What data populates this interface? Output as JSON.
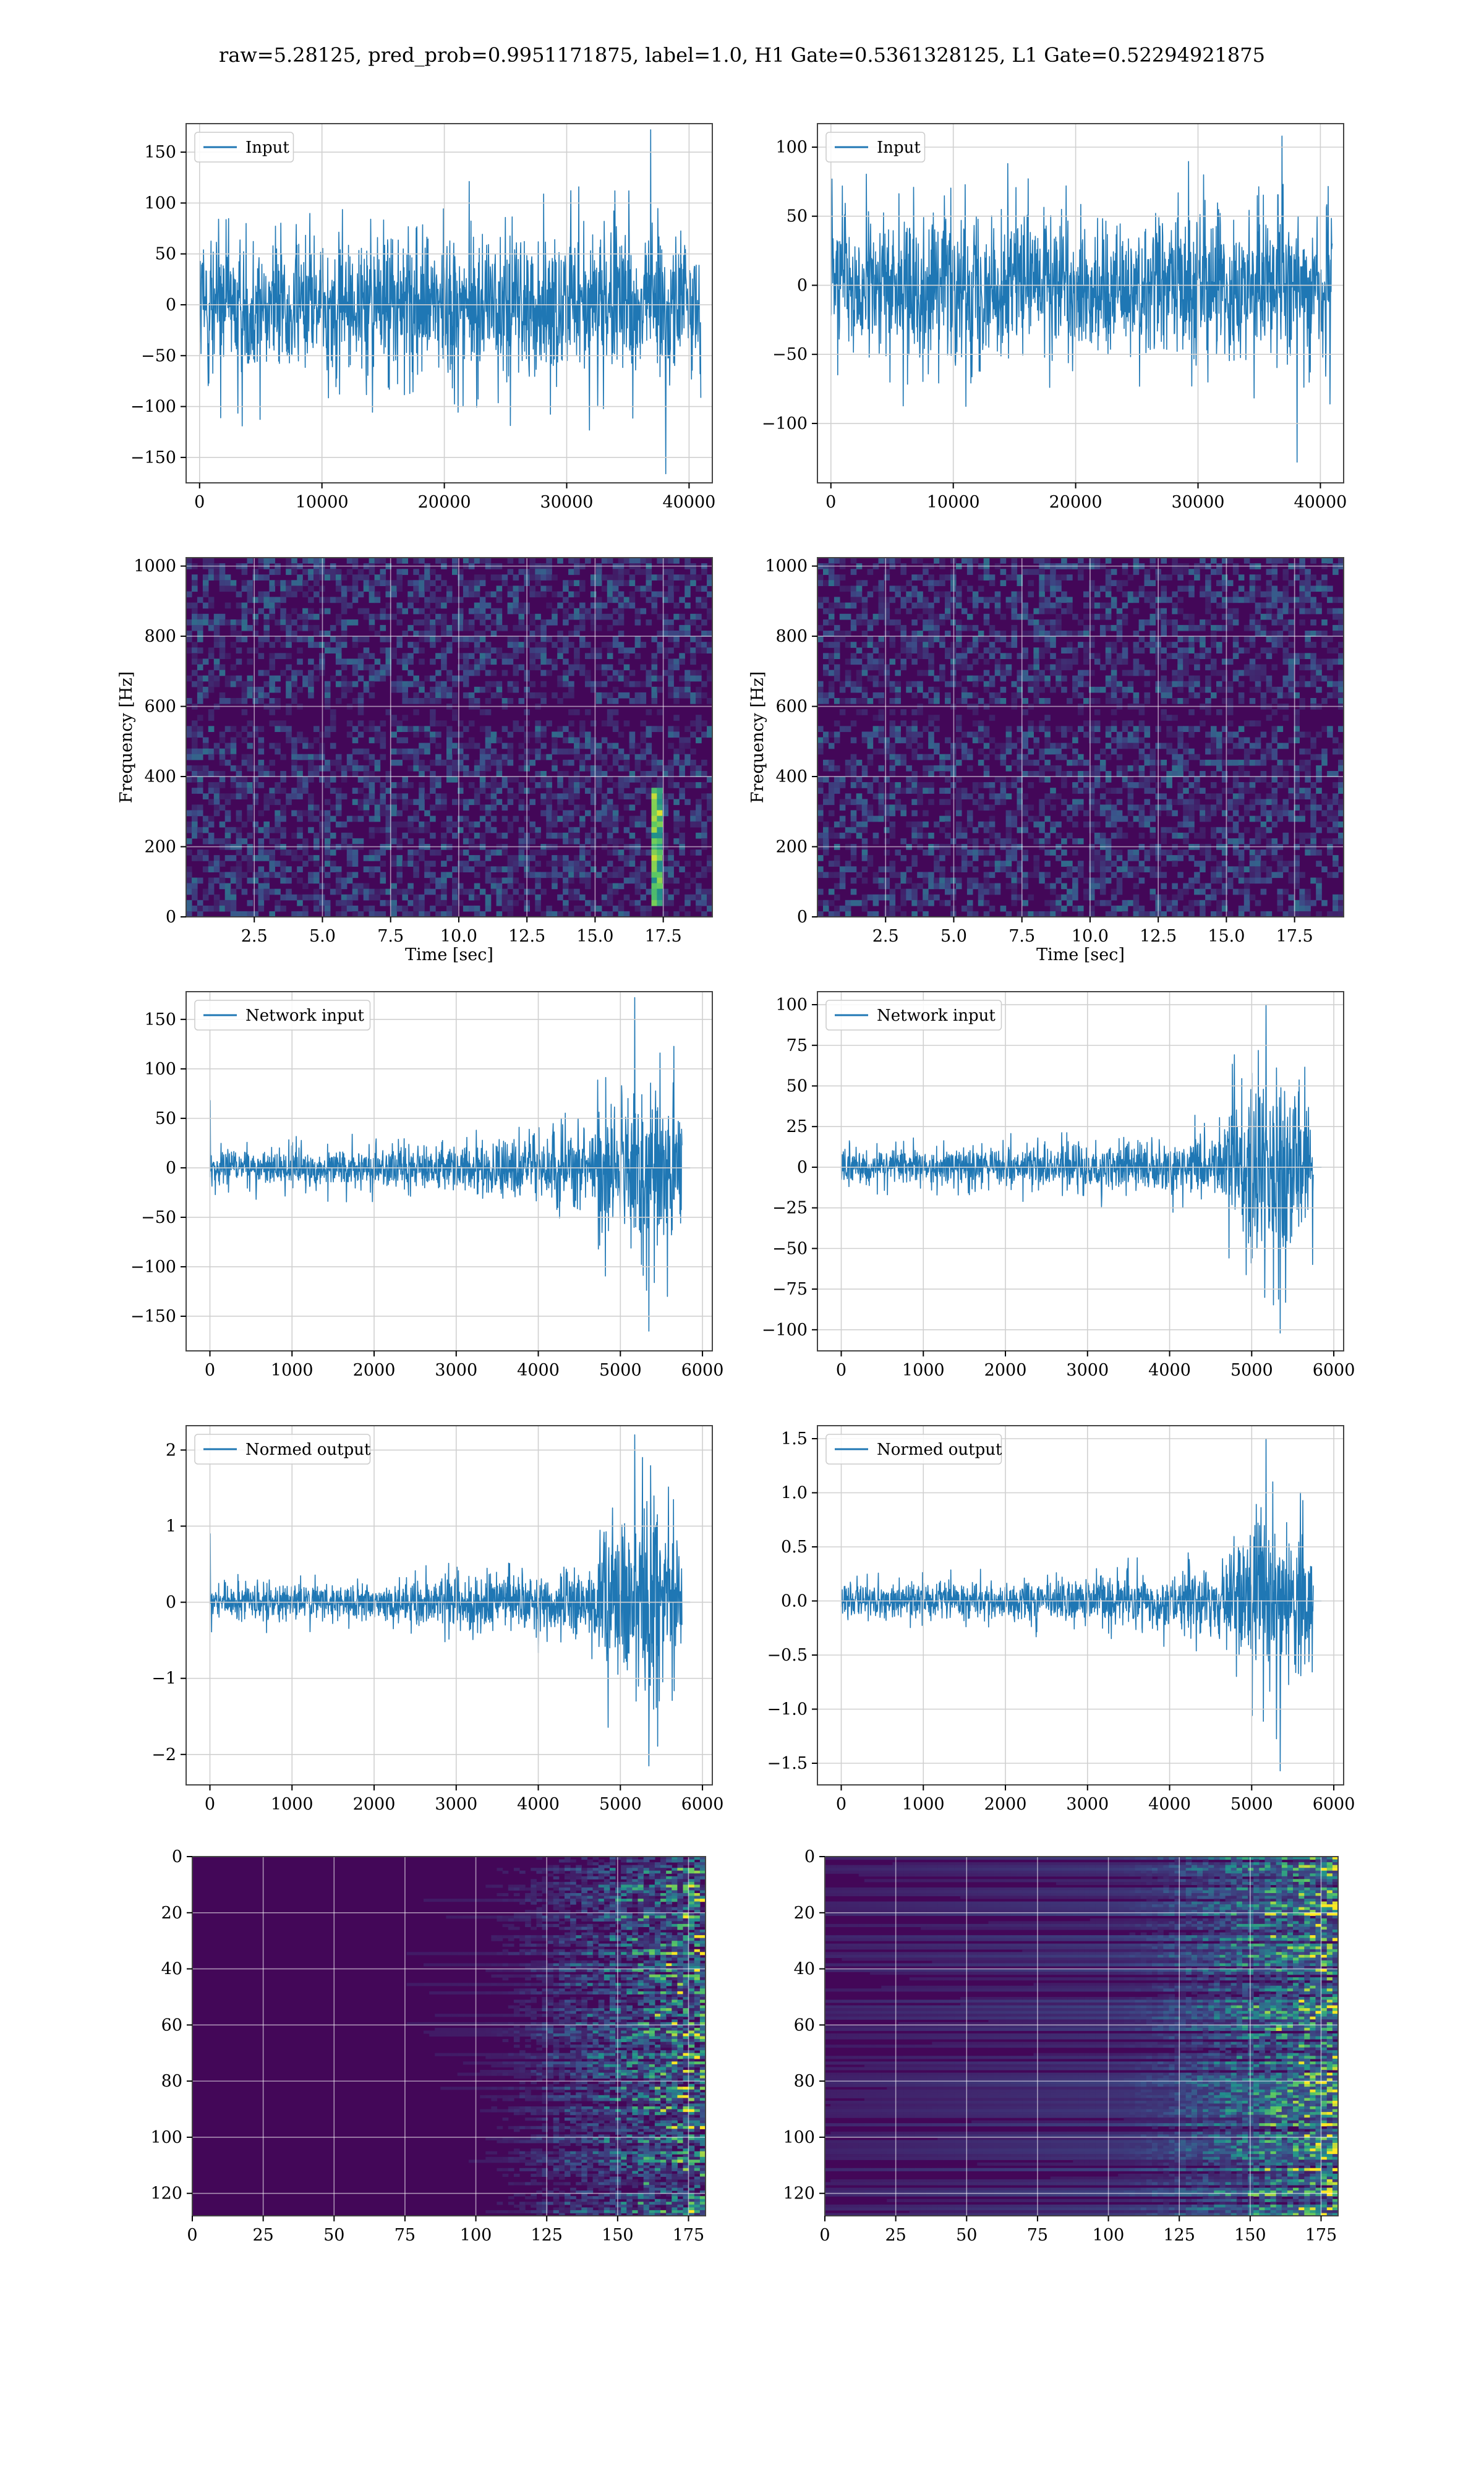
{
  "figure": {
    "title": "raw=5.28125, pred_prob=0.9951171875, label=1.0, H1 Gate=0.5361328125, L1 Gate=0.52294921875",
    "line_color": "#1f77b4"
  },
  "chart_data": [
    {
      "id": "h1-input",
      "type": "line",
      "legend": "Input",
      "xlim": [
        -1100,
        41900
      ],
      "ylim": [
        -175,
        178
      ],
      "xticks": [
        "0",
        "10000",
        "20000",
        "30000",
        "40000"
      ],
      "xtick_values": [
        0,
        10000,
        20000,
        30000,
        40000
      ],
      "yticks": [
        "150",
        "100",
        "50",
        "0",
        "−50",
        "−100",
        "−150"
      ],
      "ytick_values": [
        150,
        100,
        50,
        0,
        -50,
        -100,
        -150
      ],
      "signal": {
        "x_start": 0,
        "x_end": 40960,
        "base_amp": 82,
        "peak_max": 172,
        "peak_min": -166,
        "envelope": "flat"
      },
      "grid": true,
      "xlabel": "",
      "ylabel": ""
    },
    {
      "id": "l1-input",
      "type": "line",
      "legend": "Input",
      "xlim": [
        -1100,
        41900
      ],
      "ylim": [
        -143,
        117
      ],
      "xticks": [
        "0",
        "10000",
        "20000",
        "30000",
        "40000"
      ],
      "xtick_values": [
        0,
        10000,
        20000,
        30000,
        40000
      ],
      "yticks": [
        "100",
        "50",
        "0",
        "−50",
        "−100"
      ],
      "ytick_values": [
        100,
        50,
        0,
        -50,
        -100
      ],
      "signal": {
        "x_start": 0,
        "x_end": 40960,
        "base_amp": 62,
        "peak_max": 108,
        "peak_min": -128,
        "envelope": "flat"
      },
      "grid": true,
      "xlabel": "",
      "ylabel": ""
    },
    {
      "id": "h1-spectrogram",
      "type": "heatmap",
      "xlim": [
        0,
        19.3
      ],
      "ylim": [
        0,
        1024
      ],
      "xticks": [
        "2.5",
        "5.0",
        "7.5",
        "10.0",
        "12.5",
        "15.0",
        "17.5"
      ],
      "xtick_values": [
        2.5,
        5,
        7.5,
        10,
        12.5,
        15,
        17.5
      ],
      "yticks": [
        "0",
        "200",
        "400",
        "600",
        "800",
        "1000"
      ],
      "ytick_values": [
        0,
        200,
        400,
        600,
        800,
        1000
      ],
      "xlabel": "Time [sec]",
      "ylabel": "Frequency [Hz]",
      "colormap": "viridis",
      "grid": true
    },
    {
      "id": "l1-spectrogram",
      "type": "heatmap",
      "xlim": [
        0,
        19.3
      ],
      "ylim": [
        0,
        1024
      ],
      "xticks": [
        "2.5",
        "5.0",
        "7.5",
        "10.0",
        "12.5",
        "15.0",
        "17.5"
      ],
      "xtick_values": [
        2.5,
        5,
        7.5,
        10,
        12.5,
        15,
        17.5
      ],
      "yticks": [
        "0",
        "200",
        "400",
        "600",
        "800",
        "1000"
      ],
      "ytick_values": [
        0,
        200,
        400,
        600,
        800,
        1000
      ],
      "xlabel": "Time [sec]",
      "ylabel": "Frequency [Hz]",
      "colormap": "viridis",
      "grid": true
    },
    {
      "id": "h1-network-input",
      "type": "line",
      "legend": "Network input",
      "xlim": [
        -290,
        6120
      ],
      "ylim": [
        -185,
        178
      ],
      "xticks": [
        "0",
        "1000",
        "2000",
        "3000",
        "4000",
        "5000",
        "6000"
      ],
      "xtick_values": [
        0,
        1000,
        2000,
        3000,
        4000,
        5000,
        6000
      ],
      "yticks": [
        "150",
        "100",
        "50",
        "0",
        "−50",
        "−100",
        "−150"
      ],
      "ytick_values": [
        150,
        100,
        50,
        0,
        -50,
        -100,
        -150
      ],
      "signal": {
        "x_start": 0,
        "x_end": 5750,
        "base_amp": 14,
        "peak_max": 172,
        "peak_min": -165,
        "start_spike": 68,
        "envelope": "chirp",
        "tail_end": 5850
      },
      "grid": true,
      "xlabel": "",
      "ylabel": ""
    },
    {
      "id": "l1-network-input",
      "type": "line",
      "legend": "Network input",
      "xlim": [
        -290,
        6120
      ],
      "ylim": [
        -113,
        108
      ],
      "xticks": [
        "0",
        "1000",
        "2000",
        "3000",
        "4000",
        "5000",
        "6000"
      ],
      "xtick_values": [
        0,
        1000,
        2000,
        3000,
        4000,
        5000,
        6000
      ],
      "yticks": [
        "100",
        "75",
        "50",
        "25",
        "0",
        "−25",
        "−50",
        "−75",
        "−100"
      ],
      "ytick_values": [
        100,
        75,
        50,
        25,
        0,
        -25,
        -50,
        -75,
        -100
      ],
      "signal": {
        "x_start": 0,
        "x_end": 5750,
        "base_amp": 11,
        "peak_max": 100,
        "peak_min": -102,
        "start_spike": 0,
        "envelope": "chirp",
        "tail_end": 5850
      },
      "grid": true,
      "xlabel": "",
      "ylabel": ""
    },
    {
      "id": "h1-normed-output",
      "type": "line",
      "legend": "Normed output",
      "xlim": [
        -290,
        6120
      ],
      "ylim": [
        -2.4,
        2.32
      ],
      "xticks": [
        "0",
        "1000",
        "2000",
        "3000",
        "4000",
        "5000",
        "6000"
      ],
      "xtick_values": [
        0,
        1000,
        2000,
        3000,
        4000,
        5000,
        6000
      ],
      "yticks": [
        "2",
        "1",
        "0",
        "−1",
        "−2"
      ],
      "ytick_values": [
        2,
        1,
        0,
        -1,
        -2
      ],
      "signal": {
        "x_start": 0,
        "x_end": 5750,
        "base_amp": 0.18,
        "peak_max": 2.2,
        "peak_min": -2.15,
        "start_spike": 0.9,
        "envelope": "chirp",
        "tail_end": 5850
      },
      "grid": true,
      "xlabel": "",
      "ylabel": ""
    },
    {
      "id": "l1-normed-output",
      "type": "line",
      "legend": "Normed output",
      "xlim": [
        -290,
        6120
      ],
      "ylim": [
        -1.7,
        1.62
      ],
      "xticks": [
        "0",
        "1000",
        "2000",
        "3000",
        "4000",
        "5000",
        "6000"
      ],
      "xtick_values": [
        0,
        1000,
        2000,
        3000,
        4000,
        5000,
        6000
      ],
      "yticks": [
        "1.5",
        "1.0",
        "0.5",
        "0.0",
        "−0.5",
        "−1.0",
        "−1.5"
      ],
      "ytick_values": [
        1.5,
        1.0,
        0.5,
        0,
        -0.5,
        -1.0,
        -1.5
      ],
      "signal": {
        "x_start": 0,
        "x_end": 5750,
        "base_amp": 0.16,
        "peak_max": 1.5,
        "peak_min": -1.57,
        "start_spike": 0,
        "envelope": "chirp",
        "tail_end": 5850
      },
      "grid": true,
      "xlabel": "",
      "ylabel": ""
    },
    {
      "id": "h1-feature-map",
      "type": "heatmap",
      "xlim": [
        0,
        181
      ],
      "ylim": [
        128,
        0
      ],
      "xticks": [
        "0",
        "25",
        "50",
        "75",
        "100",
        "125",
        "150",
        "175"
      ],
      "xtick_values": [
        0,
        25,
        50,
        75,
        100,
        125,
        150,
        175
      ],
      "yticks": [
        "0",
        "20",
        "40",
        "60",
        "80",
        "100",
        "120"
      ],
      "ytick_values": [
        0,
        20,
        40,
        60,
        80,
        100,
        120
      ],
      "xlabel": "",
      "ylabel": "",
      "colormap": "viridis",
      "grid": true
    },
    {
      "id": "l1-feature-map",
      "type": "heatmap",
      "xlim": [
        0,
        181
      ],
      "ylim": [
        128,
        0
      ],
      "xticks": [
        "0",
        "25",
        "50",
        "75",
        "100",
        "125",
        "150",
        "175"
      ],
      "xtick_values": [
        0,
        25,
        50,
        75,
        100,
        125,
        150,
        175
      ],
      "yticks": [
        "0",
        "20",
        "40",
        "60",
        "80",
        "100",
        "120"
      ],
      "ytick_values": [
        0,
        20,
        40,
        60,
        80,
        100,
        120
      ],
      "xlabel": "",
      "ylabel": "",
      "colormap": "viridis",
      "grid": true
    }
  ]
}
